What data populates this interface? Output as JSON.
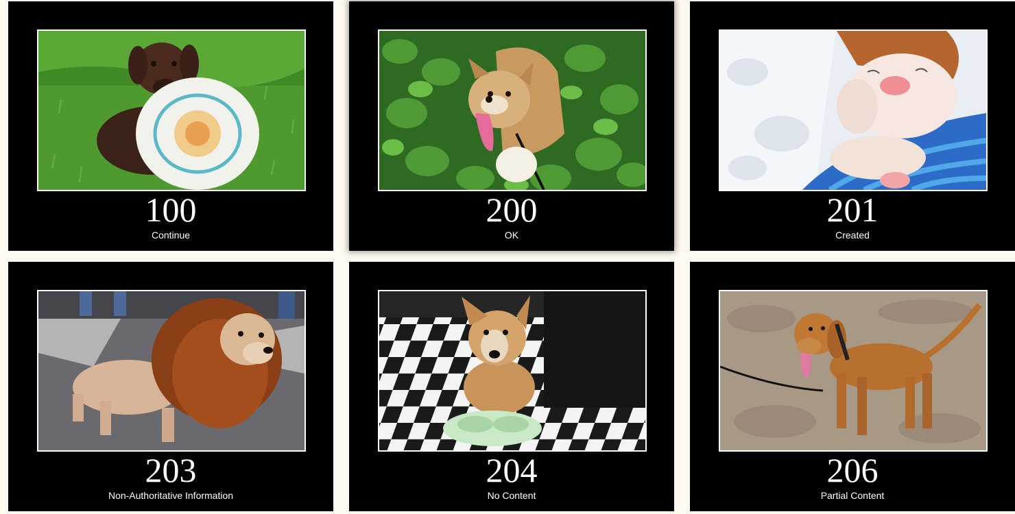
{
  "cards": [
    {
      "code": "100",
      "message": "Continue",
      "image": "chocolate-puppy-with-frisbee"
    },
    {
      "code": "200",
      "message": "OK",
      "image": "happy-dog-in-ivy"
    },
    {
      "code": "201",
      "message": "Created",
      "image": "sleeping-white-puppy"
    },
    {
      "code": "203",
      "message": "Non-Authoritative Information",
      "image": "dog-in-lion-mane-costume"
    },
    {
      "code": "204",
      "message": "No Content",
      "image": "dog-with-empty-bowl"
    },
    {
      "code": "206",
      "message": "Partial Content",
      "image": "vizsla-dog-on-leash"
    }
  ],
  "colors": {
    "page_background": "#fdf8f0",
    "card_background": "#000000",
    "text": "#ffffff"
  }
}
